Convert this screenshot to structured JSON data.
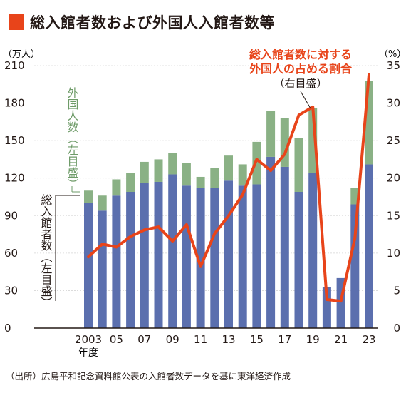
{
  "chart_data": {
    "type": "bar+line",
    "title": "総入館者数および外国人入館者数等",
    "left_unit": "（万人）",
    "right_unit": "（%）",
    "left_ylim": [
      0,
      210
    ],
    "right_ylim": [
      0,
      35
    ],
    "left_ticks": [
      "0",
      "30",
      "60",
      "90",
      "120",
      "150",
      "180",
      "210"
    ],
    "right_ticks": [
      "0",
      "5",
      "10",
      "15",
      "20",
      "25",
      "30",
      "35"
    ],
    "x_tick_labels": [
      "2003",
      "05",
      "07",
      "09",
      "11",
      "13",
      "15",
      "17",
      "19",
      "21",
      "23"
    ],
    "x_axis_suffix": "年度",
    "categories": [
      "2003",
      "2004",
      "2005",
      "2006",
      "2007",
      "2008",
      "2009",
      "2010",
      "2011",
      "2012",
      "2013",
      "2014",
      "2015",
      "2016",
      "2017",
      "2018",
      "2019",
      "2020",
      "2021",
      "2022",
      "2023"
    ],
    "series": [
      {
        "name": "総入館者数（左目盛）",
        "type": "bar",
        "color": "#5b6fae",
        "values": [
          100,
          94,
          106,
          109,
          116,
          117,
          123,
          114,
          112,
          112,
          118,
          114,
          115,
          137,
          129,
          109,
          124,
          33,
          40,
          99,
          131
        ]
      },
      {
        "name": "外国人数（左目盛）",
        "type": "bar",
        "color": "#8ab185",
        "values": [
          10,
          12,
          13,
          15,
          17,
          18,
          17,
          18,
          9,
          16,
          20,
          17,
          34,
          37,
          39,
          43,
          52,
          0,
          0,
          13,
          67
        ]
      },
      {
        "name": "総入館者数に対する外国人の占める割合（右目盛）",
        "type": "line",
        "axis": "right",
        "color": "#e8441a",
        "values": [
          9.5,
          11.2,
          10.8,
          12.2,
          13.1,
          13.5,
          11.6,
          13.8,
          8.2,
          12.6,
          15.0,
          17.8,
          22.5,
          21.0,
          23.2,
          28.4,
          29.5,
          3.8,
          3.6,
          12.0,
          33.8
        ]
      }
    ],
    "labels": {
      "foreign_bar": "外国人数（左目盛）",
      "total_bar": "総入館者数（左目盛）",
      "ratio_line_1": "総入館者数に対する",
      "ratio_line_2": "外国人の占める割合",
      "ratio_axis": "（右目盛）"
    }
  },
  "source_note": "（出所）広島平和記念資料館公表の入館者数データを基に東洋経済作成",
  "colors": {
    "accent": "#e8441a",
    "bar_total": "#5b6fae",
    "bar_foreign": "#8ab185",
    "text": "#231815"
  }
}
